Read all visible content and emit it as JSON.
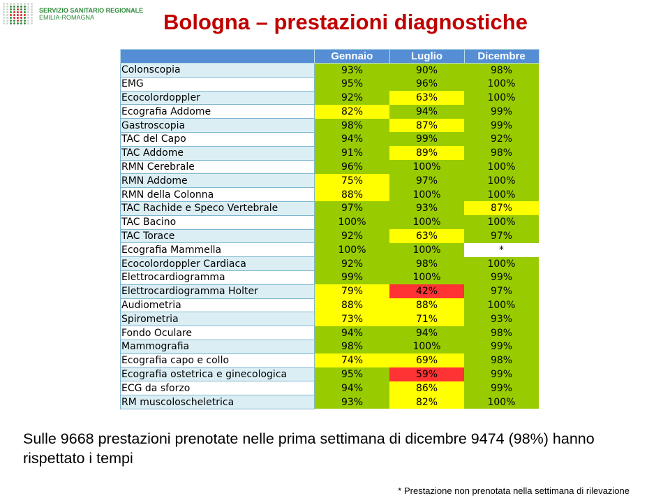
{
  "logo": {
    "line1": "SERVIZIO SANITARIO REGIONALE",
    "line2": "EMILIA-ROMAGNA"
  },
  "title": "Bologna – prestazioni diagnostiche",
  "colors": {
    "green": "#99cc00",
    "yellow": "#ffff00",
    "red": "#ff3333",
    "white": "#ffffff",
    "header": "#558ed5",
    "title": "#c00000"
  },
  "table": {
    "columns": [
      "",
      "Gennaio",
      "Luglio",
      "Dicembre"
    ],
    "rows": [
      {
        "label": "Colonscopia",
        "values": [
          "93%",
          "90%",
          "98%"
        ],
        "status": [
          "green",
          "green",
          "green"
        ]
      },
      {
        "label": "EMG",
        "values": [
          "95%",
          "96%",
          "100%"
        ],
        "status": [
          "green",
          "green",
          "green"
        ]
      },
      {
        "label": "Ecocolordoppler",
        "values": [
          "92%",
          "63%",
          "100%"
        ],
        "status": [
          "green",
          "yellow",
          "green"
        ]
      },
      {
        "label": "Ecografia Addome",
        "values": [
          "82%",
          "94%",
          "99%"
        ],
        "status": [
          "yellow",
          "green",
          "green"
        ]
      },
      {
        "label": "Gastroscopia",
        "values": [
          "98%",
          "87%",
          "99%"
        ],
        "status": [
          "green",
          "yellow",
          "green"
        ]
      },
      {
        "label": "TAC del Capo",
        "values": [
          "94%",
          "99%",
          "92%"
        ],
        "status": [
          "green",
          "green",
          "green"
        ]
      },
      {
        "label": "TAC Addome",
        "values": [
          "91%",
          "89%",
          "98%"
        ],
        "status": [
          "green",
          "yellow",
          "green"
        ]
      },
      {
        "label": "RMN Cerebrale",
        "values": [
          "96%",
          "100%",
          "100%"
        ],
        "status": [
          "green",
          "green",
          "green"
        ]
      },
      {
        "label": "RMN Addome",
        "values": [
          "75%",
          "97%",
          "100%"
        ],
        "status": [
          "yellow",
          "green",
          "green"
        ]
      },
      {
        "label": "RMN della Colonna",
        "values": [
          "88%",
          "100%",
          "100%"
        ],
        "status": [
          "yellow",
          "green",
          "green"
        ]
      },
      {
        "label": "TAC Rachide e Speco Vertebrale",
        "values": [
          "97%",
          "93%",
          "87%"
        ],
        "status": [
          "green",
          "green",
          "yellow"
        ]
      },
      {
        "label": "TAC Bacino",
        "values": [
          "100%",
          "100%",
          "100%"
        ],
        "status": [
          "green",
          "green",
          "green"
        ]
      },
      {
        "label": "TAC Torace",
        "values": [
          "92%",
          "63%",
          "97%"
        ],
        "status": [
          "green",
          "yellow",
          "green"
        ]
      },
      {
        "label": "Ecografia Mammella",
        "values": [
          "100%",
          "100%",
          "*"
        ],
        "status": [
          "green",
          "green",
          "white"
        ]
      },
      {
        "label": "Ecocolordoppler Cardiaca",
        "values": [
          "92%",
          "98%",
          "100%"
        ],
        "status": [
          "green",
          "green",
          "green"
        ]
      },
      {
        "label": "Elettrocardiogramma",
        "values": [
          "99%",
          "100%",
          "99%"
        ],
        "status": [
          "green",
          "green",
          "green"
        ]
      },
      {
        "label": "Elettrocardiogramma Holter",
        "values": [
          "79%",
          "42%",
          "97%"
        ],
        "status": [
          "yellow",
          "red",
          "green"
        ]
      },
      {
        "label": "Audiometria",
        "values": [
          "88%",
          "88%",
          "100%"
        ],
        "status": [
          "yellow",
          "yellow",
          "green"
        ]
      },
      {
        "label": "Spirometria",
        "values": [
          "73%",
          "71%",
          "93%"
        ],
        "status": [
          "yellow",
          "yellow",
          "green"
        ]
      },
      {
        "label": "Fondo Oculare",
        "values": [
          "94%",
          "94%",
          "98%"
        ],
        "status": [
          "green",
          "green",
          "green"
        ]
      },
      {
        "label": "Mammografia",
        "values": [
          "98%",
          "100%",
          "99%"
        ],
        "status": [
          "green",
          "green",
          "green"
        ]
      },
      {
        "label": "Ecografia capo e collo",
        "values": [
          "74%",
          "69%",
          "98%"
        ],
        "status": [
          "yellow",
          "yellow",
          "green"
        ]
      },
      {
        "label": "Ecografia ostetrica e ginecologica",
        "values": [
          "95%",
          "59%",
          "99%"
        ],
        "status": [
          "green",
          "red",
          "green"
        ]
      },
      {
        "label": "ECG da sforzo",
        "values": [
          "94%",
          "86%",
          "99%"
        ],
        "status": [
          "green",
          "yellow",
          "green"
        ]
      },
      {
        "label": "RM muscoloscheletrica",
        "values": [
          "93%",
          "82%",
          "100%"
        ],
        "status": [
          "green",
          "yellow",
          "green"
        ]
      }
    ]
  },
  "summary": "Sulle 9668 prestazioni prenotate nelle prima settimana di dicembre 9474 (98%) hanno rispettato i tempi",
  "footnote": "* Prestazione non prenotata nella settimana di rilevazione"
}
